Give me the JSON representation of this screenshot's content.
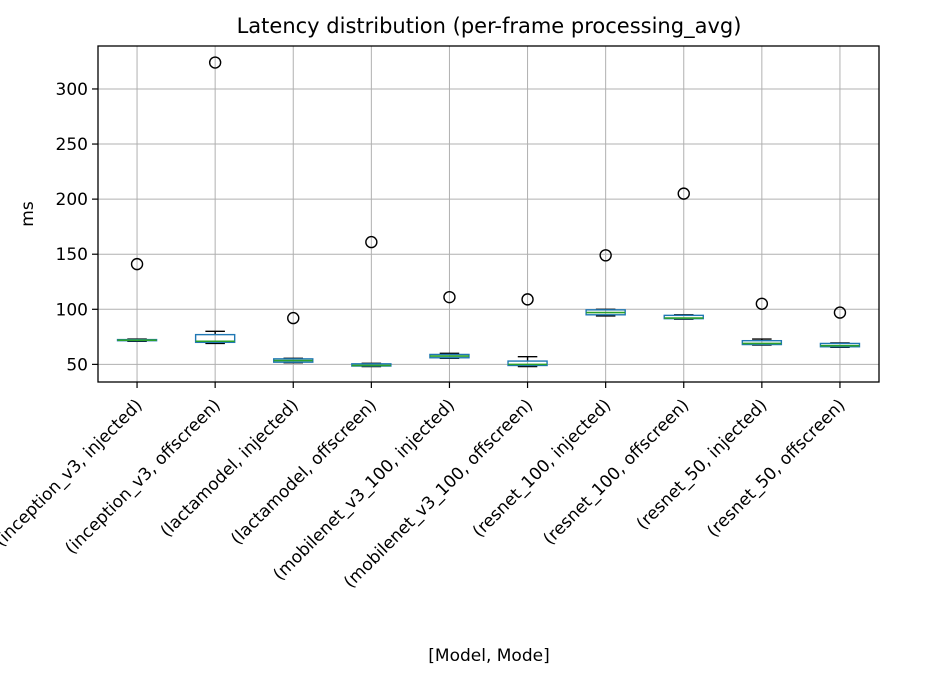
{
  "chart_data": {
    "type": "box",
    "title": "Latency distribution (per-frame processing_avg)",
    "xlabel": "[Model, Mode]",
    "ylabel": "ms",
    "ylim": [
      34,
      339
    ],
    "yticks": [
      50,
      100,
      150,
      200,
      250,
      300
    ],
    "grid": true,
    "legend": "none",
    "colors": {
      "box": "#1f77b4",
      "median": "#2ca02c",
      "whisker": "#000000",
      "grid": "#b0b0b0"
    },
    "categories": [
      "(inception_v3, injected)",
      "(inception_v3, offscreen)",
      "(lactamodel, injected)",
      "(lactamodel, offscreen)",
      "(mobilenet_v3_100, injected)",
      "(mobilenet_v3_100, offscreen)",
      "(resnet_100, injected)",
      "(resnet_100, offscreen)",
      "(resnet_50, injected)",
      "(resnet_50, offscreen)"
    ],
    "boxes": [
      {
        "whislo": 71,
        "q1": 71.5,
        "med": 72,
        "q3": 72.5,
        "whishi": 73,
        "fliers": [
          141
        ]
      },
      {
        "whislo": 69,
        "q1": 70,
        "med": 71,
        "q3": 77,
        "whishi": 80,
        "fliers": [
          324
        ]
      },
      {
        "whislo": 51.5,
        "q1": 52,
        "med": 53.5,
        "q3": 55,
        "whishi": 55.5,
        "fliers": [
          92
        ]
      },
      {
        "whislo": 48,
        "q1": 48.5,
        "med": 49,
        "q3": 50.5,
        "whishi": 51,
        "fliers": [
          161
        ]
      },
      {
        "whislo": 55.5,
        "q1": 56,
        "med": 57.5,
        "q3": 59,
        "whishi": 60,
        "fliers": [
          111
        ]
      },
      {
        "whislo": 48,
        "q1": 49,
        "med": 50,
        "q3": 53,
        "whishi": 57,
        "fliers": [
          109
        ]
      },
      {
        "whislo": 94,
        "q1": 95,
        "med": 97,
        "q3": 99.5,
        "whishi": 100,
        "fliers": [
          149
        ]
      },
      {
        "whislo": 91,
        "q1": 91.5,
        "med": 92,
        "q3": 94.5,
        "whishi": 95,
        "fliers": [
          205
        ]
      },
      {
        "whislo": 67.5,
        "q1": 68,
        "med": 69,
        "q3": 71.5,
        "whishi": 73,
        "fliers": [
          105
        ]
      },
      {
        "whislo": 65.5,
        "q1": 66,
        "med": 67,
        "q3": 69,
        "whishi": 69.5,
        "fliers": [
          97
        ]
      }
    ]
  }
}
